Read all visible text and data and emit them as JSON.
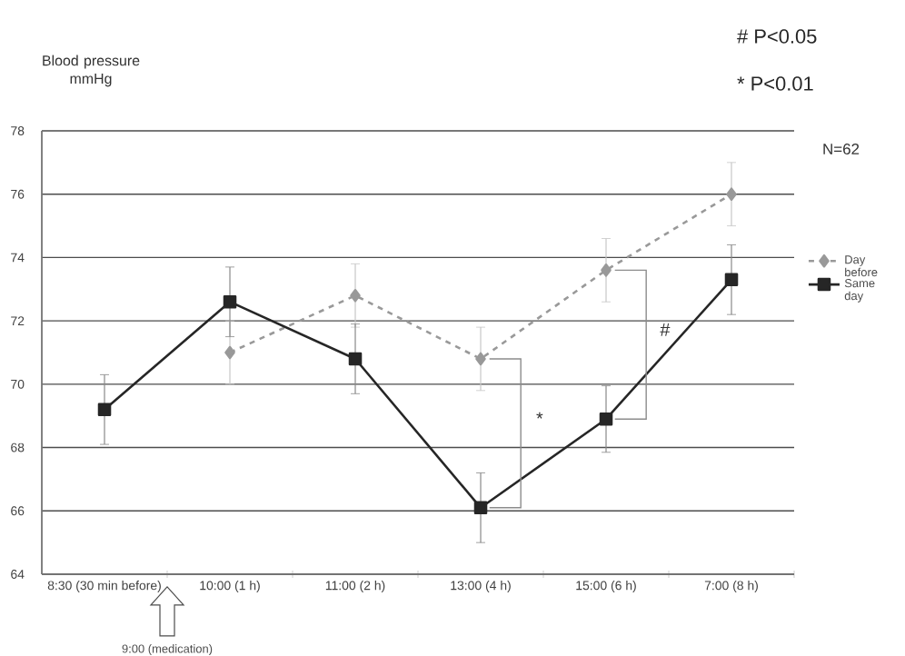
{
  "chart_data": {
    "type": "line",
    "ylabel": "Blood pressure mmHg",
    "categories": [
      "8:30 (30 min before)",
      "10:00 (1 h)",
      "11:00 (2 h)",
      "13:00 (4 h)",
      "15:00 (6 h)",
      "7:00 (8 h)"
    ],
    "ylim": [
      64,
      78
    ],
    "yticks": [
      64,
      66,
      68,
      70,
      72,
      74,
      76,
      78
    ],
    "grid": "y",
    "legend": "right",
    "series": [
      {
        "name": "Day before",
        "color": "#999999",
        "marker": "diamond",
        "line_style": "dashed",
        "values": [
          null,
          71.0,
          72.8,
          70.8,
          73.6,
          76.0
        ],
        "errors": [
          null,
          1.0,
          1.0,
          1.0,
          1.0,
          1.0
        ]
      },
      {
        "name": "Same day",
        "color": "#262626",
        "marker": "square",
        "line_style": "solid",
        "values": [
          69.2,
          72.6,
          70.8,
          66.1,
          68.9,
          73.3
        ],
        "errors": [
          1.1,
          1.1,
          1.1,
          1.1,
          1.05,
          1.1
        ]
      }
    ],
    "annotations": [
      "# P<0.05",
      "* P<0.01",
      "N=62",
      "9:00 (medication)",
      "*",
      "#"
    ]
  }
}
